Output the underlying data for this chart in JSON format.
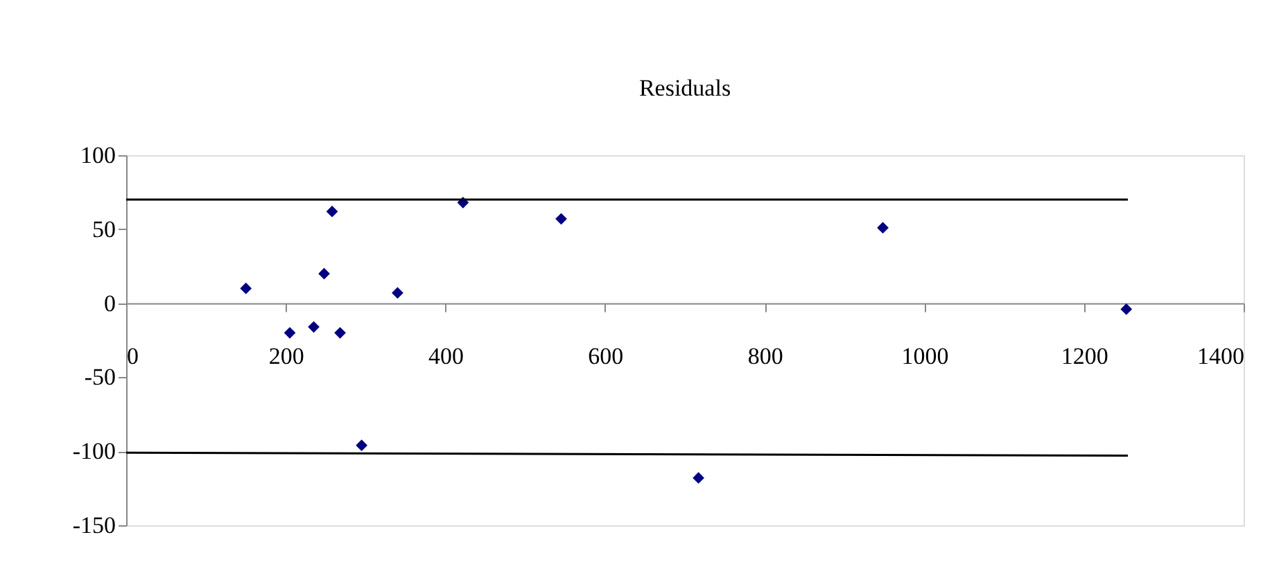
{
  "chart_data": {
    "type": "scatter",
    "title": "Residuals",
    "xlim": [
      0,
      1400
    ],
    "xticks": [
      0,
      200,
      400,
      600,
      800,
      1000,
      1200,
      1400
    ],
    "ylim": [
      -150,
      100
    ],
    "yticks": [
      -150,
      -100,
      -50,
      0,
      50,
      100
    ],
    "grid": false,
    "series": [
      {
        "color": "#000080",
        "marker": "diamond",
        "x": [
          150,
          205,
          235,
          248,
          258,
          268,
          295,
          340,
          422,
          545,
          717,
          948,
          1253
        ],
        "values": [
          10,
          -20,
          -16,
          20,
          62,
          -20,
          -96,
          7,
          68,
          57,
          -118,
          51,
          -4
        ]
      },
      {
        "type": "line",
        "color": "#000000",
        "x": [
          0,
          1255
        ],
        "values": [
          70,
          70
        ]
      },
      {
        "type": "line",
        "color": "#000000",
        "x": [
          0,
          1255
        ],
        "values": [
          -101,
          -103
        ]
      }
    ]
  }
}
